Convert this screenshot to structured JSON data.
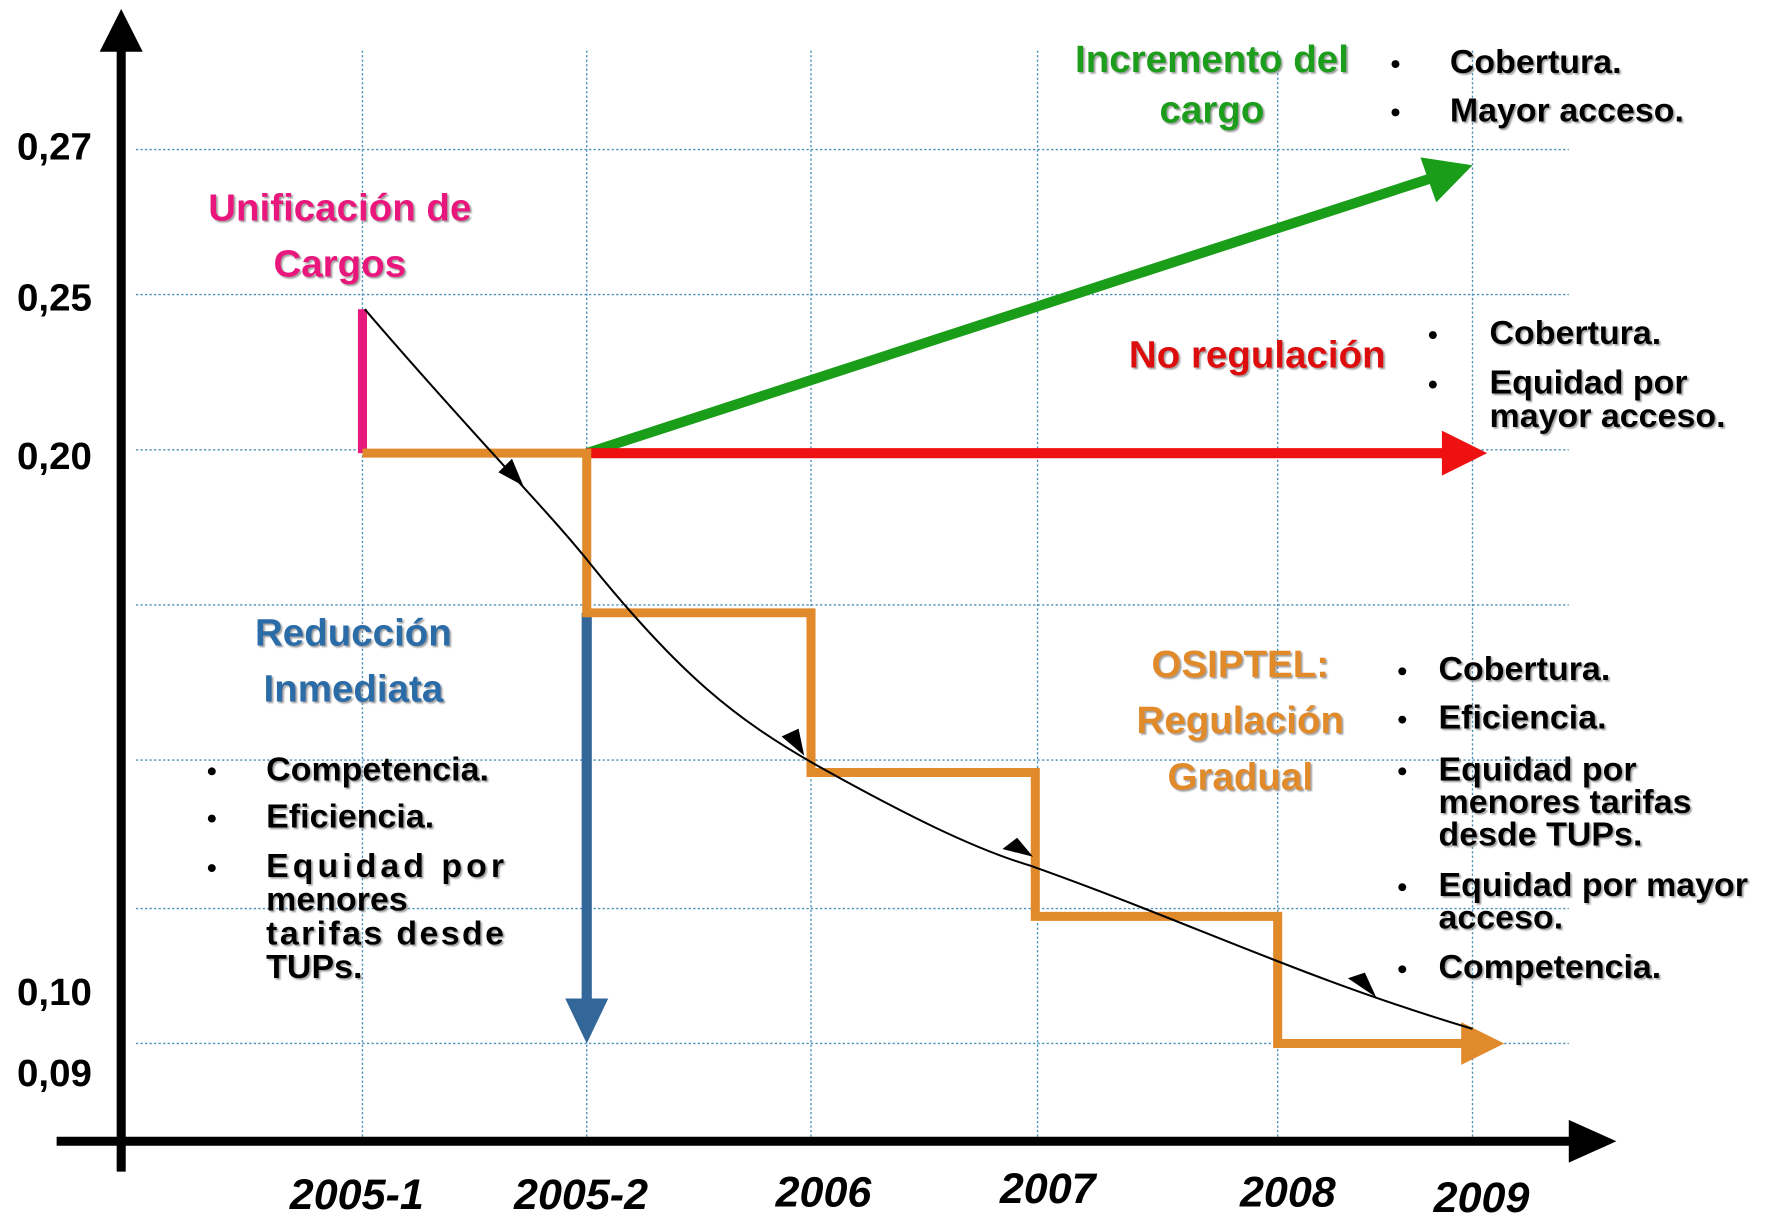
{
  "y_axis_labels": [
    "0,27",
    "0,25",
    "0,20",
    "0,10",
    "0,09"
  ],
  "x_axis_labels": [
    "2005-1",
    "2005-2",
    "2006",
    "2007",
    "2008",
    "2009"
  ],
  "unificacion": {
    "title": [
      "Unificación de",
      "Cargos"
    ]
  },
  "reduccion": {
    "title": [
      "Reducción",
      "Inmediata"
    ],
    "bullets": [
      [
        "Competencia."
      ],
      [
        "Eficiencia."
      ],
      [
        "Equidad por",
        "menores",
        "tarifas desde",
        "TUPs."
      ]
    ]
  },
  "incremento": {
    "title": [
      "Incremento del",
      "cargo"
    ],
    "bullets": [
      [
        "Cobertura."
      ],
      [
        "Mayor acceso."
      ]
    ]
  },
  "no_regulacion": {
    "title": [
      "No regulación"
    ],
    "bullets": [
      [
        "Cobertura."
      ],
      [
        "Equidad por",
        "mayor acceso."
      ]
    ]
  },
  "osiptel": {
    "title": [
      "OSIPTEL:",
      "Regulación",
      "Gradual"
    ],
    "bullets": [
      [
        "Cobertura."
      ],
      [
        "Eficiencia."
      ],
      [
        "Equidad por",
        "menores tarifas",
        "desde TUPs."
      ],
      [
        "Equidad por mayor",
        "acceso."
      ],
      [
        "Competencia."
      ]
    ]
  }
}
